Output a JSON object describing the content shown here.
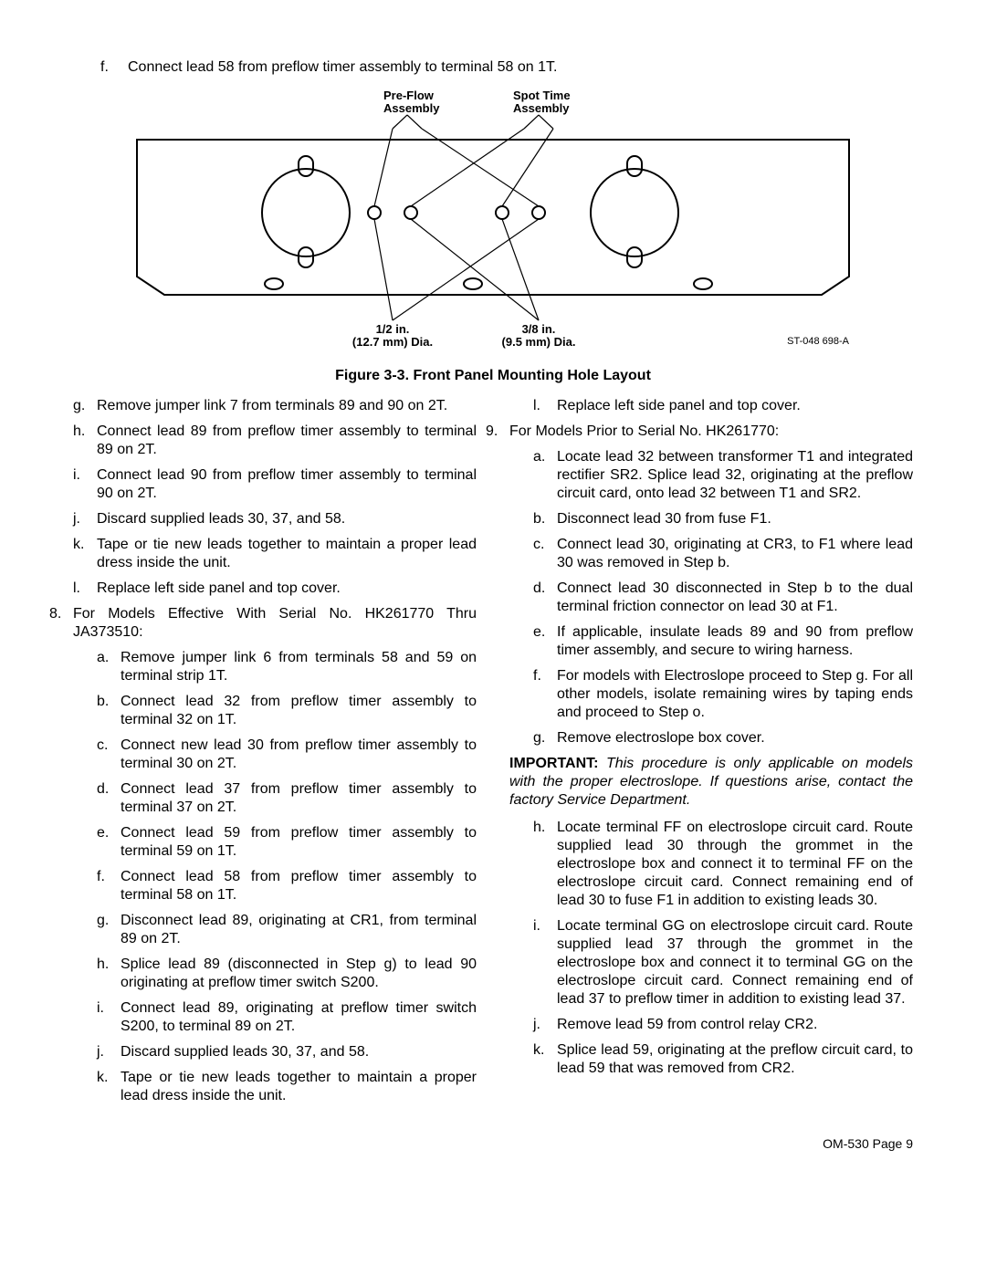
{
  "intro": {
    "f_marker": "f.",
    "f_text": "Connect lead 58 from preflow timer assembly to terminal 58 on 1T."
  },
  "figure": {
    "label_preflow": "Pre-Flow\nAssembly",
    "label_spottime": "Spot Time\nAssembly",
    "label_half_in": "1/2 in.\n(12.7 mm) Dia.",
    "label_three_eighth": "3/8 in.\n(9.5 mm) Dia.",
    "fig_ref": "ST-048 698-A",
    "caption": "Figure 3-3. Front Panel Mounting Hole Layout",
    "colors": {
      "stroke": "#000000",
      "bg": "#ffffff"
    },
    "stroke_width": 2
  },
  "left_list": [
    {
      "m": "g.",
      "t": "Remove jumper link 7 from terminals 89 and 90 on 2T."
    },
    {
      "m": "h.",
      "t": "Connect lead 89 from preflow timer assembly to terminal 89 on 2T."
    },
    {
      "m": "i.",
      "t": "Connect lead 90 from preflow timer assembly to terminal 90 on 2T."
    },
    {
      "m": "j.",
      "t": "Discard supplied leads 30, 37, and 58."
    },
    {
      "m": "k.",
      "t": "Tape or tie new leads together to maintain a proper lead dress inside the unit."
    },
    {
      "m": "l.",
      "t": "Replace left side panel and top cover."
    }
  ],
  "left_8_marker": "8.",
  "left_8_text": "For Models Effective With Serial No. HK261770 Thru JA373510:",
  "left_8_sub": [
    {
      "m": "a.",
      "t": "Remove jumper link 6 from terminals 58 and 59 on terminal strip 1T."
    },
    {
      "m": "b.",
      "t": "Connect lead 32 from preflow timer assembly to terminal 32 on 1T."
    },
    {
      "m": "c.",
      "t": "Connect new lead 30 from preflow timer assembly to terminal 30 on 2T."
    },
    {
      "m": "d.",
      "t": "Connect lead 37 from preflow timer assembly to terminal 37 on 2T."
    },
    {
      "m": "e.",
      "t": "Connect lead 59 from preflow timer assembly to terminal 59 on 1T."
    },
    {
      "m": "f.",
      "t": "Connect lead 58 from preflow timer assembly to terminal 58 on 1T."
    },
    {
      "m": "g.",
      "t": "Disconnect lead 89, originating at CR1, from terminal 89 on 2T."
    },
    {
      "m": "h.",
      "t": "Splice lead 89 (disconnected in Step g) to lead 90 originating at preflow timer switch S200."
    },
    {
      "m": "i.",
      "t": "Connect lead 89, originating at preflow timer switch S200, to terminal 89 on 2T."
    },
    {
      "m": "j.",
      "t": "Discard supplied leads 30, 37, and 58."
    },
    {
      "m": "k.",
      "t": "Tape or tie new leads together to maintain a proper lead dress inside the unit."
    }
  ],
  "right_top": [
    {
      "m": "l.",
      "t": "Replace left side panel and top cover."
    }
  ],
  "right_9_marker": "9.",
  "right_9_text": "For Models Prior to Serial No. HK261770:",
  "right_9_sub": [
    {
      "m": "a.",
      "t": "Locate lead 32 between transformer T1 and integrated rectifier SR2. Splice lead 32, originating at the preflow circuit card, onto lead 32 between T1 and SR2."
    },
    {
      "m": "b.",
      "t": "Disconnect lead 30 from fuse F1."
    },
    {
      "m": "c.",
      "t": "Connect lead 30, originating at CR3, to F1 where lead 30 was removed in Step b."
    },
    {
      "m": "d.",
      "t": "Connect lead 30 disconnected in Step b to the dual terminal friction connector on lead 30 at F1."
    },
    {
      "m": "e.",
      "t": "If applicable, insulate leads 89 and 90 from preflow timer assembly, and secure to wiring harness."
    },
    {
      "m": "f.",
      "t": "For models with Electroslope proceed to Step g. For all other models, isolate remaining wires by taping ends and proceed to Step o."
    },
    {
      "m": "g.",
      "t": "Remove electroslope box cover."
    }
  ],
  "important_label": "IMPORTANT:",
  "important_text": " This procedure is only applicable on models with the proper electroslope. If questions arise, contact the factory Service Department.",
  "right_after": [
    {
      "m": "h.",
      "t": "Locate terminal FF on electroslope circuit card. Route supplied lead 30 through the grommet in the electroslope box and connect it to terminal FF on the electroslope circuit card. Connect remaining end of lead 30 to fuse F1 in addition to existing leads 30."
    },
    {
      "m": "i.",
      "t": "Locate terminal GG on electroslope circuit card. Route supplied lead 37 through the grommet in the electroslope box and connect it to terminal GG on the electroslope circuit card. Connect remaining end of lead 37 to preflow timer in addition to existing lead 37."
    },
    {
      "m": "j.",
      "t": "Remove lead 59 from control relay CR2."
    },
    {
      "m": "k.",
      "t": "Splice lead 59, originating at the preflow circuit card, to lead 59 that was removed from CR2."
    }
  ],
  "footer": "OM-530 Page 9"
}
